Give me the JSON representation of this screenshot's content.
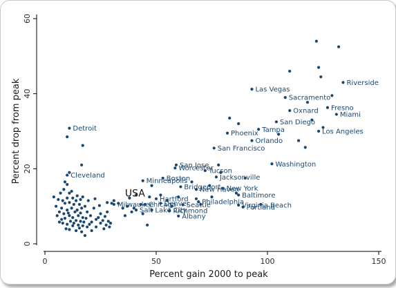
{
  "chart_data": {
    "type": "scatter",
    "title": "",
    "xlabel": "Percent gain 2000 to peak",
    "ylabel": "Percent drop from peak",
    "xlim": [
      0,
      150
    ],
    "ylim": [
      0,
      60
    ],
    "xticks": [
      0,
      50,
      100,
      150
    ],
    "yticks": [
      0,
      20,
      40,
      60
    ],
    "grid": false,
    "marker_color": "#1a476f",
    "annotation": {
      "text": "USA",
      "x": 36,
      "y": 13.5
    },
    "labeled_points": [
      {
        "name": "Riverside",
        "x": 134,
        "y": 43
      },
      {
        "name": "Las Vegas",
        "x": 93,
        "y": 41.2
      },
      {
        "name": "Sacramento",
        "x": 108,
        "y": 39
      },
      {
        "name": "Fresno",
        "x": 127,
        "y": 36.3
      },
      {
        "name": "Miami",
        "x": 131,
        "y": 34.5
      },
      {
        "name": "Oxnard",
        "x": 110,
        "y": 35.5
      },
      {
        "name": "San Diego",
        "x": 104,
        "y": 32.5
      },
      {
        "name": "Tampa",
        "x": 96,
        "y": 30.5
      },
      {
        "name": "Los Angeles",
        "x": 123,
        "y": 30
      },
      {
        "name": "Phoenix",
        "x": 82,
        "y": 29.5
      },
      {
        "name": "Orlando",
        "x": 93,
        "y": 27.5
      },
      {
        "name": "San Francisco",
        "x": 76,
        "y": 25.5
      },
      {
        "name": "Washington",
        "x": 102,
        "y": 21.3
      },
      {
        "name": "Detroit",
        "x": 11,
        "y": 30.8
      },
      {
        "name": "San Jose",
        "x": 59,
        "y": 21
      },
      {
        "name": "Worcester",
        "x": 58.5,
        "y": 20.2
      },
      {
        "name": "Tucson",
        "x": 72,
        "y": 19.5
      },
      {
        "name": "Cleveland",
        "x": 10,
        "y": 18.3
      },
      {
        "name": "Jacksonville",
        "x": 77,
        "y": 17.8
      },
      {
        "name": "Minneapolis",
        "x": 44,
        "y": 16.8
      },
      {
        "name": "Boston",
        "x": 53,
        "y": 17.5
      },
      {
        "name": "New York",
        "x": 80,
        "y": 14.8
      },
      {
        "name": "Bridgeport",
        "x": 61,
        "y": 15.2
      },
      {
        "name": "New Haven",
        "x": 68,
        "y": 14.5
      },
      {
        "name": "Baltimore",
        "x": 87,
        "y": 13
      },
      {
        "name": "Hartford",
        "x": 50,
        "y": 12
      },
      {
        "name": "Philadelphia",
        "x": 69,
        "y": 11.2
      },
      {
        "name": "Milwaukee",
        "x": 31,
        "y": 10.5
      },
      {
        "name": "Chicago",
        "x": 45,
        "y": 10.5
      },
      {
        "name": "Seattle",
        "x": 62,
        "y": 10.4
      },
      {
        "name": "Denver",
        "x": 52,
        "y": 10.8
      },
      {
        "name": "Virginia Beach",
        "x": 87,
        "y": 10.3
      },
      {
        "name": "Portland",
        "x": 89,
        "y": 9.8
      },
      {
        "name": "Salt Lake City",
        "x": 41,
        "y": 9
      },
      {
        "name": "Richmond",
        "x": 56,
        "y": 8.8
      },
      {
        "name": "Albany",
        "x": 60,
        "y": 7.4
      }
    ],
    "other_points": [
      [
        4,
        12.5
      ],
      [
        5,
        10
      ],
      [
        5.5,
        7.5
      ],
      [
        6,
        11.8
      ],
      [
        6.5,
        8.5
      ],
      [
        6.5,
        5.8
      ],
      [
        7,
        13.5
      ],
      [
        7.5,
        9.5
      ],
      [
        7.5,
        6.5
      ],
      [
        8,
        11.5
      ],
      [
        8,
        5.5
      ],
      [
        8.5,
        14.5
      ],
      [
        8.5,
        8
      ],
      [
        9,
        16.5
      ],
      [
        9,
        10.8
      ],
      [
        9,
        6.8
      ],
      [
        9.5,
        4
      ],
      [
        10,
        28.5
      ],
      [
        10,
        15.8
      ],
      [
        10,
        12.2
      ],
      [
        10,
        9
      ],
      [
        10,
        5.2
      ],
      [
        10.5,
        8.2
      ],
      [
        11,
        19
      ],
      [
        11,
        13.5
      ],
      [
        11,
        11
      ],
      [
        11,
        7.5
      ],
      [
        11,
        3.8
      ],
      [
        11.5,
        6
      ],
      [
        12,
        14
      ],
      [
        12,
        9.5
      ],
      [
        12.5,
        12.2
      ],
      [
        12.5,
        7
      ],
      [
        12.5,
        4.8
      ],
      [
        13,
        10.5
      ],
      [
        13,
        5.5
      ],
      [
        13.5,
        8.5
      ],
      [
        14,
        11.5
      ],
      [
        14,
        6.2
      ],
      [
        14,
        3.5
      ],
      [
        14.5,
        12.8
      ],
      [
        14.5,
        9
      ],
      [
        15,
        7.5
      ],
      [
        15,
        5
      ],
      [
        15.5,
        10.5
      ],
      [
        15.5,
        4.2
      ],
      [
        16,
        11.8
      ],
      [
        16,
        8.2
      ],
      [
        16,
        6
      ],
      [
        16.5,
        21
      ],
      [
        16.5,
        9.5
      ],
      [
        16.5,
        3.2
      ],
      [
        17,
        26.2
      ],
      [
        17,
        12.5
      ],
      [
        17,
        7
      ],
      [
        17,
        4.8
      ],
      [
        17.5,
        5.8
      ],
      [
        18,
        10
      ],
      [
        18,
        2.2
      ],
      [
        18.5,
        6.8
      ],
      [
        19,
        8.5
      ],
      [
        19,
        4.5
      ],
      [
        19.5,
        11.5
      ],
      [
        20,
        5.2
      ],
      [
        20.5,
        7.5
      ],
      [
        21,
        5.8
      ],
      [
        21,
        3.5
      ],
      [
        22,
        9.5
      ],
      [
        22.5,
        12
      ],
      [
        23,
        6.5
      ],
      [
        23,
        4.5
      ],
      [
        24,
        7
      ],
      [
        24.5,
        10.2
      ],
      [
        25,
        5.5
      ],
      [
        25,
        8
      ],
      [
        26,
        6.2
      ],
      [
        26.5,
        4
      ],
      [
        27,
        7.3
      ],
      [
        27.5,
        5
      ],
      [
        28,
        11
      ],
      [
        28,
        8.5
      ],
      [
        28.5,
        6
      ],
      [
        29,
        4.5
      ],
      [
        29.5,
        5.5
      ],
      [
        30,
        10.8
      ],
      [
        31,
        11.5
      ],
      [
        33,
        10.8
      ],
      [
        35,
        9.5
      ],
      [
        36,
        7.5
      ],
      [
        37,
        10
      ],
      [
        38,
        12.2
      ],
      [
        39,
        8.5
      ],
      [
        40,
        9.5
      ],
      [
        41,
        13
      ],
      [
        43,
        10.5
      ],
      [
        44,
        8
      ],
      [
        46,
        5
      ],
      [
        47,
        12.5
      ],
      [
        48,
        9
      ],
      [
        48,
        15.5
      ],
      [
        52,
        13
      ],
      [
        55,
        11.5
      ],
      [
        57,
        10
      ],
      [
        60,
        12.5
      ],
      [
        66,
        16.5
      ],
      [
        68,
        12
      ],
      [
        70,
        10.5
      ],
      [
        74,
        15.5
      ],
      [
        75,
        12.5
      ],
      [
        78,
        21
      ],
      [
        79,
        19
      ],
      [
        83,
        33.5
      ],
      [
        86,
        13.5
      ],
      [
        87,
        32
      ],
      [
        90,
        17.5
      ],
      [
        97,
        10.5
      ],
      [
        105,
        29.2
      ],
      [
        110,
        46
      ],
      [
        114,
        27.5
      ],
      [
        117,
        25.7
      ],
      [
        118,
        37.7
      ],
      [
        120,
        33
      ],
      [
        122,
        54
      ],
      [
        123,
        47
      ],
      [
        124,
        44.5
      ],
      [
        125,
        31
      ],
      [
        129,
        39.5
      ],
      [
        132,
        52.5
      ]
    ]
  }
}
